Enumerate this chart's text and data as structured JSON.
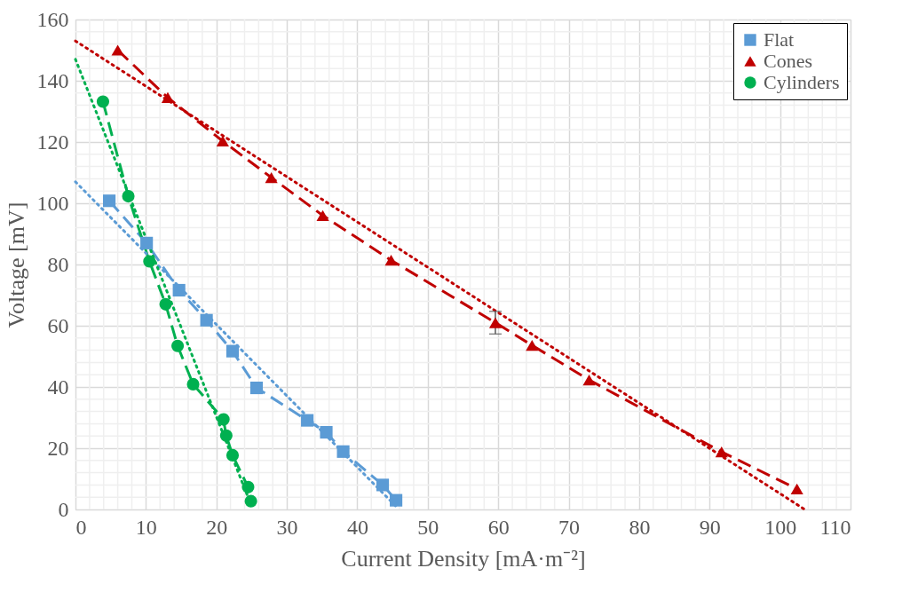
{
  "chart_data": {
    "type": "line",
    "xlabel": "Current Density [mA·m⁻²]",
    "ylabel": "Voltage [mV]",
    "xlim": [
      0,
      110
    ],
    "xticks": [
      0,
      10,
      20,
      30,
      40,
      50,
      60,
      70,
      80,
      90,
      100,
      110
    ],
    "ylim": [
      0,
      160
    ],
    "yticks": [
      0,
      20,
      40,
      60,
      80,
      100,
      120,
      140,
      160
    ],
    "grid": true,
    "legend": "top right",
    "series": [
      {
        "name": "Flat",
        "color": "#5b9bd5",
        "marker": "square",
        "line_style": "dashed",
        "x": [
          4.8,
          10.1,
          14.7,
          18.6,
          22.3,
          25.7,
          32.9,
          35.6,
          38.0,
          43.6,
          45.5
        ],
        "values": [
          100.8,
          87.0,
          71.6,
          61.8,
          51.7,
          39.7,
          29.1,
          25.2,
          18.9,
          8.0,
          3.0
        ]
      },
      {
        "name": "Cones",
        "color": "#c00000",
        "marker": "triangle",
        "line_style": "dashed",
        "x": [
          6.0,
          13.1,
          20.9,
          27.8,
          35.1,
          44.8,
          59.6,
          64.8,
          72.9,
          91.7,
          102.4
        ],
        "values": [
          150,
          134.5,
          120.3,
          108.4,
          96,
          81.4,
          61,
          53.6,
          42.3,
          18.8,
          6.7
        ],
        "errors": [
          null,
          null,
          null,
          null,
          null,
          null,
          3.7,
          null,
          null,
          null,
          null
        ]
      },
      {
        "name": "Cylinders",
        "color": "#00b050",
        "marker": "circle",
        "line_style": "dashed",
        "x": [
          3.9,
          7.5,
          10.5,
          12.8,
          14.5,
          16.7,
          21.0,
          21.4,
          22.3,
          24.5,
          24.9
        ],
        "values": [
          133.2,
          102.3,
          81.0,
          67.0,
          53.4,
          40.9,
          29.4,
          24.1,
          17.7,
          7.3,
          2.7
        ]
      },
      {
        "color": "#5b9bd5",
        "marker": "none",
        "line_style": "dotted",
        "x": [
          0,
          45.5
        ],
        "values": [
          107,
          1
        ]
      },
      {
        "color": "#c00000",
        "marker": "none",
        "line_style": "dotted",
        "x": [
          0,
          103.5
        ],
        "values": [
          153,
          0
        ]
      },
      {
        "color": "#00b050",
        "marker": "none",
        "line_style": "dotted",
        "x": [
          0,
          24.5
        ],
        "values": [
          147,
          4
        ]
      }
    ]
  }
}
